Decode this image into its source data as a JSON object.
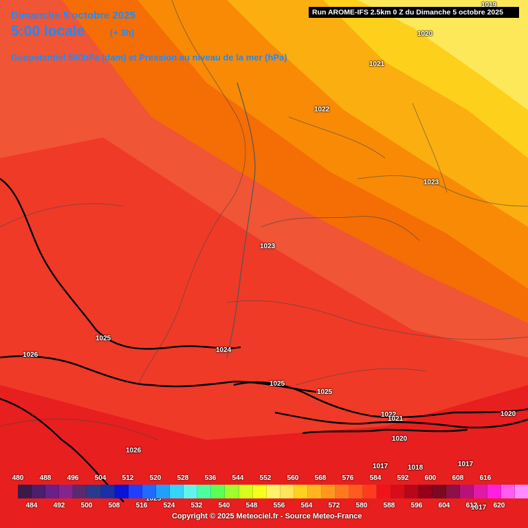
{
  "header": {
    "date_line": "Dimanche 5 octobre 2025",
    "time_line": "5:00 locale",
    "offset": "(+ 3h)",
    "field_title": "Geopotentiel 500hPa (dam) et Pression au niveau de la mer (hPa)",
    "run_info": "Run AROME-IFS 2.5km 0 Z du Dimanche 5 octobre 2025"
  },
  "colors": {
    "band_yellow_light": "#fde85a",
    "band_yellow": "#fdd01c",
    "band_orange_light": "#fbae0f",
    "band_orange": "#f88a05",
    "band_orange_dark": "#f56d05",
    "band_red_orange": "#f05535",
    "band_red": "#ef3a28",
    "band_red_deep": "#e71f1f",
    "title_blue": "#1a8cff"
  },
  "isobars": [
    {
      "label": "1019"
    },
    {
      "label": "1020"
    },
    {
      "label": "1021"
    },
    {
      "label": "1022"
    },
    {
      "label": "1023"
    },
    {
      "label": "1023"
    },
    {
      "label": "1025"
    },
    {
      "label": "1024"
    },
    {
      "label": "1026"
    },
    {
      "label": "1025"
    },
    {
      "label": "1025"
    },
    {
      "label": "1022"
    },
    {
      "label": "1021"
    },
    {
      "label": "1020"
    },
    {
      "label": "1020"
    },
    {
      "label": "1026"
    },
    {
      "label": "1017"
    },
    {
      "label": "1018"
    },
    {
      "label": "1017"
    },
    {
      "label": "1017"
    },
    {
      "label": "1025"
    }
  ],
  "legend": {
    "top_ticks": [
      "480",
      "488",
      "496",
      "504",
      "512",
      "520",
      "528",
      "536",
      "544",
      "552",
      "560",
      "568",
      "576",
      "584",
      "592",
      "600",
      "608",
      "616"
    ],
    "bottom_ticks": [
      "484",
      "492",
      "500",
      "508",
      "516",
      "524",
      "532",
      "540",
      "548",
      "556",
      "564",
      "572",
      "580",
      "588",
      "596",
      "604",
      "612",
      "620"
    ],
    "swatch_colors": [
      "#3b1a4a",
      "#4a1f6e",
      "#6a1f8a",
      "#86248f",
      "#5b2a6e",
      "#2a3b8f",
      "#1a2fa8",
      "#0b14d6",
      "#1f3fff",
      "#1f6bff",
      "#1fa0ff",
      "#36d3ff",
      "#5ff5ea",
      "#4cff9e",
      "#5cff55",
      "#9dff2e",
      "#d6ff1f",
      "#f7ff1f",
      "#fff36b",
      "#ffe45c",
      "#ffd21f",
      "#ffb61f",
      "#ff9a1f",
      "#ff7a1f",
      "#ff5a1f",
      "#ff3a1f",
      "#f0141a",
      "#d80d1a",
      "#b8061a",
      "#95001a",
      "#7a0a1f",
      "#8f0f4a",
      "#b8127a",
      "#e01aa8",
      "#ff1fe0",
      "#ff5cf0",
      "#ff8cff"
    ],
    "copyright": "Copyright © 2025 Meteociel.fr - Source Meteo-France"
  }
}
